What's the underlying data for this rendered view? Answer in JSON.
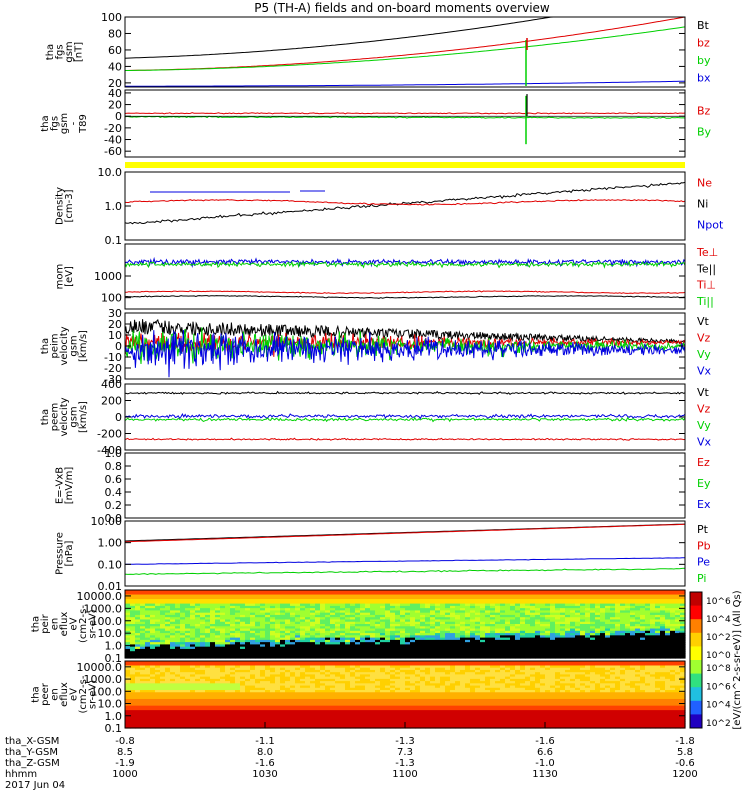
{
  "title": "P5 (TH-A) fields and on-board moments overview",
  "colors": {
    "black": "#000000",
    "red": "#e00000",
    "green": "#00d000",
    "blue": "#0000e0",
    "yellow": "#ffff00"
  },
  "chart_data": [
    {
      "type": "line",
      "ylabel": [
        "tha",
        "fgs",
        "gsm",
        "[nT]"
      ],
      "ylim": [
        15,
        100
      ],
      "yticks": [
        "100",
        "80",
        "60",
        "40",
        "20"
      ],
      "legend": [
        {
          "name": "Bt",
          "color": "#000000"
        },
        {
          "name": "bz",
          "color": "#e00000"
        },
        {
          "name": "by",
          "color": "#00d000"
        },
        {
          "name": "bx",
          "color": "#0000e0"
        }
      ]
    },
    {
      "type": "line",
      "ylabel": [
        "tha",
        "fgs",
        "gsm",
        "-",
        "T89"
      ],
      "ylim": [
        -70,
        45
      ],
      "yticks": [
        "40",
        "20",
        "0",
        "-20",
        "-40",
        "-60"
      ],
      "legend": [
        {
          "name": "Bz",
          "color": "#e00000"
        },
        {
          "name": "By",
          "color": "#00d000"
        }
      ]
    },
    {
      "type": "line",
      "ylabel": [
        "Density",
        "[cm-3]"
      ],
      "scale": "log",
      "ylim": [
        0.1,
        10
      ],
      "yticks": [
        "10.0",
        "1.0",
        "0.1"
      ],
      "legend": [
        {
          "name": "Ne",
          "color": "#e00000"
        },
        {
          "name": "Ni",
          "color": "#000000"
        },
        {
          "name": "Npot",
          "color": "#0000e0"
        }
      ]
    },
    {
      "type": "line",
      "ylabel": [
        "mom",
        "[eV]"
      ],
      "scale": "log",
      "ylim": [
        30,
        30000
      ],
      "yticks": [
        "1000",
        "100"
      ],
      "legend": [
        {
          "name": "Te⊥",
          "color": "#e00000"
        },
        {
          "name": "Te||",
          "color": "#000000"
        },
        {
          "name": "Ti⊥",
          "color": "#e00000"
        },
        {
          "name": "Ti||",
          "color": "#00d000"
        }
      ]
    },
    {
      "type": "line",
      "ylabel": [
        "tha",
        "peim",
        "velocity",
        "gsm",
        "[km/s]"
      ],
      "ylim": [
        -30,
        30
      ],
      "yticks": [
        "30",
        "20",
        "10",
        "0",
        "-10",
        "-20",
        "-30"
      ],
      "legend": [
        {
          "name": "Vt",
          "color": "#000000"
        },
        {
          "name": "Vz",
          "color": "#e00000"
        },
        {
          "name": "Vy",
          "color": "#00d000"
        },
        {
          "name": "Vx",
          "color": "#0000e0"
        }
      ]
    },
    {
      "type": "line",
      "ylabel": [
        "tha",
        "peem",
        "velocity",
        "gsm",
        "[km/s]"
      ],
      "ylim": [
        -400,
        400
      ],
      "yticks": [
        "400",
        "200",
        "0",
        "-200",
        "-400"
      ],
      "legend": [
        {
          "name": "Vt",
          "color": "#000000"
        },
        {
          "name": "Vz",
          "color": "#e00000"
        },
        {
          "name": "Vy",
          "color": "#00d000"
        },
        {
          "name": "Vx",
          "color": "#0000e0"
        }
      ]
    },
    {
      "type": "line",
      "ylabel": [
        "E=-VxB",
        "[mV/m]"
      ],
      "ylim": [
        0,
        1
      ],
      "yticks": [
        "1.0",
        "0.8",
        "0.6",
        "0.4",
        "0.2",
        "0.0"
      ],
      "legend": [
        {
          "name": "Ez",
          "color": "#e00000"
        },
        {
          "name": "Ey",
          "color": "#00d000"
        },
        {
          "name": "Ex",
          "color": "#0000e0"
        }
      ]
    },
    {
      "type": "line",
      "ylabel": [
        "Pressure",
        "[nPa]"
      ],
      "scale": "log",
      "ylim": [
        0.01,
        10
      ],
      "yticks": [
        "10.00",
        "1.00",
        "0.10",
        "0.01"
      ],
      "legend": [
        {
          "name": "Pt",
          "color": "#000000"
        },
        {
          "name": "Pb",
          "color": "#e00000"
        },
        {
          "name": "Pe",
          "color": "#0000e0"
        },
        {
          "name": "Pi",
          "color": "#00d000"
        }
      ]
    },
    {
      "type": "heatmap",
      "ylabel": [
        "tha",
        "peir",
        "en",
        "eflux",
        "eV",
        "(cm2-s-",
        "sr-eV)"
      ],
      "scale": "log",
      "ylim": [
        0.1,
        30000
      ],
      "yticks": [
        "10000.0",
        "1000.0",
        "100.0",
        "10.0",
        "1.0",
        "0.1"
      ]
    },
    {
      "type": "heatmap",
      "ylabel": [
        "tha",
        "peer",
        "en",
        "eflux",
        "eV",
        "(cm2-s-",
        "sr-eV)"
      ],
      "scale": "log",
      "ylim": [
        0.1,
        30000
      ],
      "yticks": [
        "10000.0",
        "1000.0",
        "100.0",
        "10.0",
        "1.0",
        "0.1"
      ]
    }
  ],
  "colorbar": {
    "label": "[eV/(cm^2-s-sr-eV)] (All Qs)",
    "ticks_upper": [
      "10^6",
      "10^4",
      "10^2",
      "10^0"
    ],
    "ticks_lower": [
      "10^8",
      "10^6",
      "10^4",
      "10^2"
    ]
  },
  "x_axis": {
    "rows": [
      {
        "label": "tha_X-GSM",
        "values": [
          "-0.8",
          "-1.1",
          "-1.3",
          "-1.6",
          "-1.8"
        ]
      },
      {
        "label": "tha_Y-GSM",
        "values": [
          "8.5",
          "8.0",
          "7.3",
          "6.6",
          "5.8"
        ]
      },
      {
        "label": "tha_Z-GSM",
        "values": [
          "-1.9",
          "-1.6",
          "-1.3",
          "-1.0",
          "-0.6"
        ]
      },
      {
        "label": "hhmm",
        "values": [
          "1000",
          "1030",
          "1100",
          "1130",
          "1200"
        ]
      }
    ],
    "date": "2017 Jun 04"
  }
}
